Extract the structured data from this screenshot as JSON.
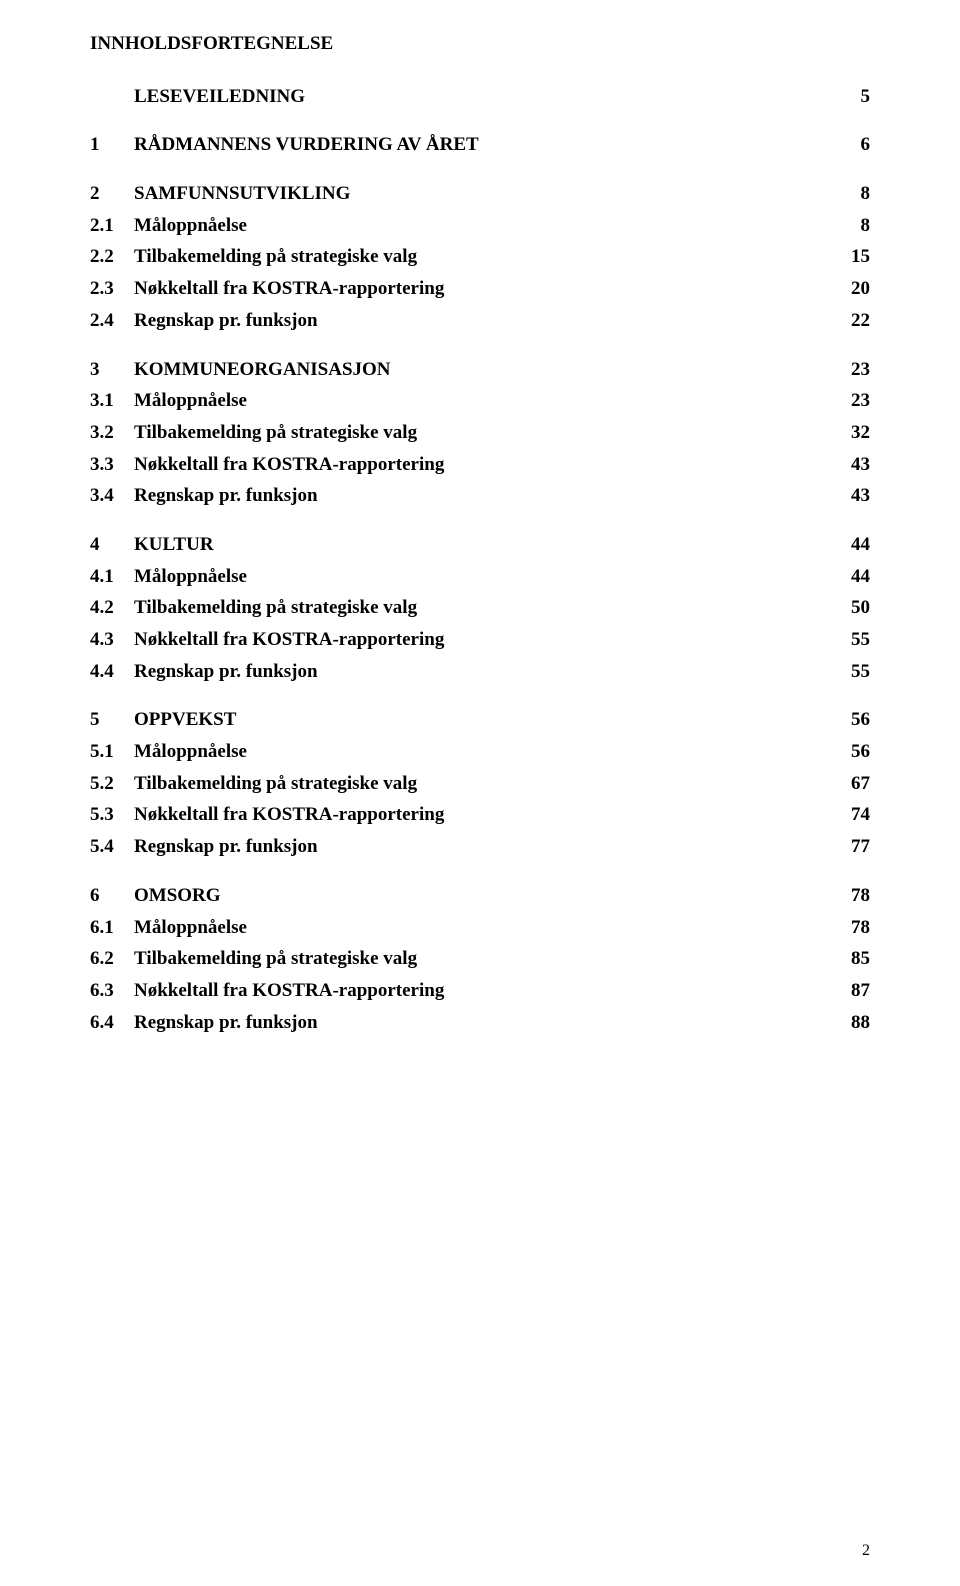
{
  "title": "INNHOLDSFORTEGNELSE",
  "page_number": "2",
  "top": [
    {
      "num": "",
      "text": "LESEVEILEDNING",
      "page": "5"
    },
    {
      "num": "1",
      "text": "RÅDMANNENS VURDERING AV ÅRET",
      "page": "6"
    }
  ],
  "sections": [
    {
      "head": {
        "num": "2",
        "text": "SAMFUNNSUTVIKLING",
        "page": "8"
      },
      "items": [
        {
          "num": "2.1",
          "text": "Måloppnåelse",
          "page": "8"
        },
        {
          "num": "2.2",
          "text": "Tilbakemelding på strategiske valg",
          "page": "15"
        },
        {
          "num": "2.3",
          "text": "Nøkkeltall fra KOSTRA-rapportering",
          "page": "20"
        },
        {
          "num": "2.4",
          "text": "Regnskap pr. funksjon",
          "page": "22"
        }
      ]
    },
    {
      "head": {
        "num": "3",
        "text": "KOMMUNEORGANISASJON",
        "page": "23"
      },
      "items": [
        {
          "num": "3.1",
          "text": "Måloppnåelse",
          "page": "23"
        },
        {
          "num": "3.2",
          "text": "Tilbakemelding på strategiske valg",
          "page": "32"
        },
        {
          "num": "3.3",
          "text": "Nøkkeltall fra KOSTRA-rapportering",
          "page": "43"
        },
        {
          "num": "3.4",
          "text": "Regnskap pr. funksjon",
          "page": "43"
        }
      ]
    },
    {
      "head": {
        "num": "4",
        "text": "KULTUR",
        "page": "44"
      },
      "items": [
        {
          "num": "4.1",
          "text": "Måloppnåelse",
          "page": "44"
        },
        {
          "num": "4.2",
          "text": "Tilbakemelding på strategiske valg",
          "page": "50"
        },
        {
          "num": "4.3",
          "text": "Nøkkeltall fra KOSTRA-rapportering",
          "page": "55"
        },
        {
          "num": "4.4",
          "text": "Regnskap pr. funksjon",
          "page": "55"
        }
      ]
    },
    {
      "head": {
        "num": "5",
        "text": "OPPVEKST",
        "page": "56"
      },
      "items": [
        {
          "num": "5.1",
          "text": "Måloppnåelse",
          "page": "56"
        },
        {
          "num": "5.2",
          "text": "Tilbakemelding på strategiske valg",
          "page": "67"
        },
        {
          "num": "5.3",
          "text": "Nøkkeltall fra KOSTRA-rapportering",
          "page": "74"
        },
        {
          "num": "5.4",
          "text": "Regnskap pr. funksjon",
          "page": "77"
        }
      ]
    },
    {
      "head": {
        "num": "6",
        "text": "OMSORG",
        "page": "78"
      },
      "items": [
        {
          "num": "6.1",
          "text": "Måloppnåelse",
          "page": "78"
        },
        {
          "num": "6.2",
          "text": "Tilbakemelding på strategiske valg",
          "page": "85"
        },
        {
          "num": "6.3",
          "text": "Nøkkeltall fra KOSTRA-rapportering",
          "page": "87"
        },
        {
          "num": "6.4",
          "text": "Regnskap pr. funksjon",
          "page": "88"
        }
      ]
    }
  ]
}
